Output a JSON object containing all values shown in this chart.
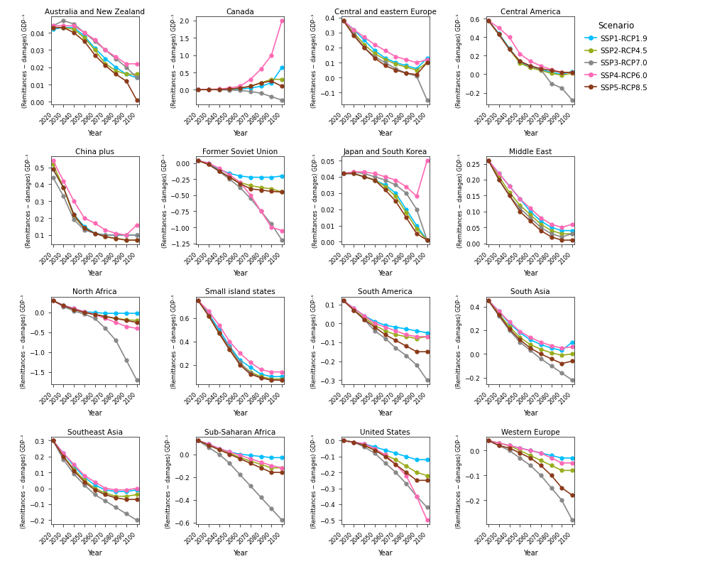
{
  "years": [
    2020,
    2030,
    2040,
    2050,
    2060,
    2070,
    2080,
    2090,
    2100
  ],
  "scenarios": [
    "SSP1-RCP1.9",
    "SSP2-RCP4.5",
    "SSP3-RCP7.0",
    "SSP4-RCP6.0",
    "SSP5-RCP8.5"
  ],
  "colors": [
    "#00BFFF",
    "#9aad1e",
    "#888888",
    "#FF69B4",
    "#8B3A1A"
  ],
  "regions": [
    "Australia and New Zealand",
    "Canada",
    "Central and eastern Europe",
    "Central America",
    "China plus",
    "Former Soviet Union",
    "Japan and South Korea",
    "Middle East",
    "North Africa",
    "Small island states",
    "South America",
    "South Asia",
    "Southeast Asia",
    "Sub-Saharan Africa",
    "United States",
    "Western Europe"
  ],
  "data": {
    "Australia and New Zealand": [
      [
        0.042,
        0.043,
        0.043,
        0.038,
        0.031,
        0.025,
        0.02,
        0.016,
        0.014
      ],
      [
        0.043,
        0.043,
        0.042,
        0.037,
        0.03,
        0.022,
        0.018,
        0.016,
        0.016
      ],
      [
        0.044,
        0.047,
        0.045,
        0.04,
        0.035,
        0.03,
        0.025,
        0.02,
        0.014
      ],
      [
        0.044,
        0.044,
        0.044,
        0.04,
        0.036,
        0.03,
        0.026,
        0.022,
        0.022
      ],
      [
        0.043,
        0.043,
        0.04,
        0.035,
        0.027,
        0.021,
        0.016,
        0.012,
        0.001
      ]
    ],
    "Canada": [
      [
        0.0,
        0.01,
        0.01,
        0.01,
        0.02,
        0.05,
        0.1,
        0.2,
        0.65
      ],
      [
        0.0,
        0.01,
        0.01,
        0.02,
        0.05,
        0.1,
        0.2,
        0.3,
        0.3
      ],
      [
        0.0,
        0.0,
        0.0,
        -0.01,
        -0.02,
        -0.05,
        -0.1,
        -0.2,
        -0.3
      ],
      [
        0.0,
        0.01,
        0.02,
        0.05,
        0.1,
        0.3,
        0.6,
        1.0,
        2.0
      ],
      [
        0.0,
        0.01,
        0.01,
        0.02,
        0.05,
        0.1,
        0.2,
        0.25,
        0.1
      ]
    ],
    "Central and eastern Europe": [
      [
        0.38,
        0.32,
        0.25,
        0.18,
        0.13,
        0.1,
        0.08,
        0.06,
        0.13
      ],
      [
        0.38,
        0.3,
        0.22,
        0.16,
        0.12,
        0.09,
        0.07,
        0.05,
        0.1
      ],
      [
        0.38,
        0.29,
        0.2,
        0.14,
        0.1,
        0.06,
        0.03,
        0.01,
        -0.15
      ],
      [
        0.38,
        0.32,
        0.27,
        0.22,
        0.18,
        0.14,
        0.12,
        0.1,
        0.12
      ],
      [
        0.38,
        0.28,
        0.2,
        0.13,
        0.08,
        0.05,
        0.03,
        0.02,
        0.1
      ]
    ],
    "Central America": [
      [
        0.58,
        0.44,
        0.28,
        0.13,
        0.08,
        0.05,
        0.02,
        0.0,
        0.03
      ],
      [
        0.58,
        0.43,
        0.27,
        0.12,
        0.07,
        0.04,
        0.01,
        -0.01,
        0.01
      ],
      [
        0.58,
        0.43,
        0.27,
        0.14,
        0.09,
        0.05,
        -0.1,
        -0.15,
        -0.28
      ],
      [
        0.58,
        0.5,
        0.4,
        0.22,
        0.14,
        0.09,
        0.05,
        0.02,
        0.02
      ],
      [
        0.58,
        0.43,
        0.27,
        0.14,
        0.09,
        0.06,
        0.04,
        0.02,
        0.02
      ]
    ],
    "China plus": [
      [
        0.49,
        0.38,
        0.22,
        0.15,
        0.11,
        0.1,
        0.1,
        0.1,
        0.1
      ],
      [
        0.52,
        0.38,
        0.21,
        0.14,
        0.11,
        0.09,
        0.08,
        0.07,
        0.07
      ],
      [
        0.44,
        0.33,
        0.19,
        0.13,
        0.11,
        0.1,
        0.1,
        0.1,
        0.1
      ],
      [
        0.54,
        0.42,
        0.3,
        0.2,
        0.17,
        0.13,
        0.11,
        0.1,
        0.16
      ],
      [
        0.49,
        0.38,
        0.22,
        0.14,
        0.11,
        0.09,
        0.08,
        0.07,
        0.07
      ]
    ],
    "Former Soviet Union": [
      [
        0.04,
        0.0,
        -0.1,
        -0.16,
        -0.2,
        -0.22,
        -0.22,
        -0.22,
        -0.2
      ],
      [
        0.04,
        -0.02,
        -0.12,
        -0.22,
        -0.3,
        -0.35,
        -0.38,
        -0.4,
        -0.45
      ],
      [
        0.04,
        -0.02,
        -0.13,
        -0.25,
        -0.38,
        -0.55,
        -0.75,
        -0.95,
        -1.2
      ],
      [
        0.04,
        0.0,
        -0.08,
        -0.18,
        -0.3,
        -0.5,
        -0.75,
        -1.0,
        -1.05
      ],
      [
        0.04,
        -0.02,
        -0.12,
        -0.22,
        -0.32,
        -0.4,
        -0.42,
        -0.44,
        -0.45
      ]
    ],
    "Japan and South Korea": [
      [
        0.042,
        0.042,
        0.04,
        0.038,
        0.035,
        0.03,
        0.02,
        0.01,
        0.001
      ],
      [
        0.042,
        0.042,
        0.04,
        0.038,
        0.034,
        0.028,
        0.018,
        0.008,
        0.001
      ],
      [
        0.042,
        0.043,
        0.042,
        0.04,
        0.038,
        0.035,
        0.03,
        0.02,
        0.001
      ],
      [
        0.042,
        0.043,
        0.043,
        0.042,
        0.04,
        0.038,
        0.034,
        0.028,
        0.05
      ],
      [
        0.042,
        0.042,
        0.04,
        0.038,
        0.032,
        0.025,
        0.015,
        0.005,
        0.001
      ]
    ],
    "Middle East": [
      [
        0.26,
        0.22,
        0.18,
        0.14,
        0.1,
        0.07,
        0.05,
        0.04,
        0.04
      ],
      [
        0.26,
        0.21,
        0.16,
        0.12,
        0.09,
        0.06,
        0.04,
        0.03,
        0.03
      ],
      [
        0.26,
        0.2,
        0.15,
        0.11,
        0.08,
        0.05,
        0.03,
        0.02,
        0.03
      ],
      [
        0.26,
        0.22,
        0.18,
        0.14,
        0.11,
        0.08,
        0.06,
        0.05,
        0.06
      ],
      [
        0.26,
        0.2,
        0.15,
        0.1,
        0.07,
        0.04,
        0.02,
        0.01,
        0.01
      ]
    ],
    "North Africa": [
      [
        0.3,
        0.18,
        0.1,
        0.02,
        0.0,
        -0.02,
        -0.02,
        -0.02,
        -0.02
      ],
      [
        0.3,
        0.17,
        0.08,
        0.0,
        -0.05,
        -0.1,
        -0.15,
        -0.18,
        -0.2
      ],
      [
        0.3,
        0.15,
        0.04,
        -0.04,
        -0.15,
        -0.4,
        -0.7,
        -1.2,
        -1.7
      ],
      [
        0.3,
        0.18,
        0.1,
        0.02,
        -0.05,
        -0.15,
        -0.25,
        -0.35,
        -0.4
      ],
      [
        0.3,
        0.17,
        0.08,
        0.0,
        -0.05,
        -0.1,
        -0.15,
        -0.2,
        -0.25
      ]
    ],
    "Small island states": [
      [
        0.75,
        0.64,
        0.5,
        0.36,
        0.24,
        0.18,
        0.12,
        0.1,
        0.1
      ],
      [
        0.75,
        0.62,
        0.47,
        0.33,
        0.21,
        0.14,
        0.1,
        0.08,
        0.08
      ],
      [
        0.75,
        0.63,
        0.48,
        0.35,
        0.22,
        0.13,
        0.09,
        0.07,
        0.07
      ],
      [
        0.75,
        0.66,
        0.54,
        0.4,
        0.3,
        0.22,
        0.16,
        0.14,
        0.14
      ],
      [
        0.75,
        0.62,
        0.47,
        0.33,
        0.2,
        0.12,
        0.09,
        0.07,
        0.07
      ]
    ],
    "South America": [
      [
        0.12,
        0.08,
        0.04,
        0.01,
        -0.01,
        -0.02,
        -0.03,
        -0.04,
        -0.05
      ],
      [
        0.12,
        0.07,
        0.03,
        -0.01,
        -0.04,
        -0.06,
        -0.07,
        -0.08,
        -0.07
      ],
      [
        0.12,
        0.07,
        0.02,
        -0.04,
        -0.08,
        -0.13,
        -0.17,
        -0.22,
        -0.3
      ],
      [
        0.12,
        0.08,
        0.04,
        0.0,
        -0.02,
        -0.04,
        -0.06,
        -0.07,
        -0.07
      ],
      [
        0.12,
        0.07,
        0.02,
        -0.02,
        -0.06,
        -0.09,
        -0.12,
        -0.15,
        -0.15
      ]
    ],
    "South Asia": [
      [
        0.45,
        0.36,
        0.26,
        0.18,
        0.12,
        0.08,
        0.05,
        0.03,
        0.1
      ],
      [
        0.45,
        0.34,
        0.23,
        0.14,
        0.08,
        0.04,
        0.01,
        -0.01,
        0.0
      ],
      [
        0.45,
        0.32,
        0.2,
        0.1,
        0.03,
        -0.04,
        -0.1,
        -0.16,
        -0.22
      ],
      [
        0.45,
        0.36,
        0.27,
        0.19,
        0.14,
        0.1,
        0.07,
        0.05,
        0.06
      ],
      [
        0.45,
        0.33,
        0.21,
        0.12,
        0.05,
        0.0,
        -0.04,
        -0.08,
        -0.06
      ]
    ],
    "Southeast Asia": [
      [
        0.3,
        0.22,
        0.14,
        0.07,
        0.02,
        -0.01,
        -0.02,
        -0.02,
        -0.01
      ],
      [
        0.3,
        0.2,
        0.12,
        0.05,
        0.0,
        -0.03,
        -0.05,
        -0.05,
        -0.04
      ],
      [
        0.3,
        0.18,
        0.09,
        0.02,
        -0.04,
        -0.08,
        -0.12,
        -0.16,
        -0.2
      ],
      [
        0.3,
        0.22,
        0.15,
        0.08,
        0.04,
        0.0,
        -0.01,
        -0.01,
        0.0
      ],
      [
        0.3,
        0.2,
        0.11,
        0.04,
        -0.01,
        -0.04,
        -0.06,
        -0.07,
        -0.07
      ]
    ],
    "Sub-Saharan Africa": [
      [
        0.12,
        0.09,
        0.05,
        0.02,
        0.0,
        -0.01,
        -0.02,
        -0.03,
        -0.03
      ],
      [
        0.12,
        0.08,
        0.04,
        0.01,
        -0.03,
        -0.06,
        -0.09,
        -0.12,
        -0.12
      ],
      [
        0.12,
        0.06,
        0.0,
        -0.08,
        -0.18,
        -0.28,
        -0.38,
        -0.48,
        -0.58
      ],
      [
        0.12,
        0.09,
        0.05,
        0.02,
        -0.01,
        -0.04,
        -0.07,
        -0.1,
        -0.12
      ],
      [
        0.12,
        0.08,
        0.04,
        0.0,
        -0.04,
        -0.08,
        -0.12,
        -0.16,
        -0.16
      ]
    ],
    "United States": [
      [
        0.0,
        -0.01,
        -0.02,
        -0.04,
        -0.06,
        -0.08,
        -0.1,
        -0.12,
        -0.12
      ],
      [
        0.0,
        -0.01,
        -0.03,
        -0.06,
        -0.09,
        -0.12,
        -0.16,
        -0.2,
        -0.22
      ],
      [
        0.0,
        -0.01,
        -0.04,
        -0.08,
        -0.14,
        -0.2,
        -0.27,
        -0.35,
        -0.42
      ],
      [
        0.0,
        -0.01,
        -0.02,
        -0.05,
        -0.09,
        -0.15,
        -0.22,
        -0.35,
        -0.5
      ],
      [
        0.0,
        -0.01,
        -0.03,
        -0.06,
        -0.1,
        -0.15,
        -0.2,
        -0.25,
        -0.25
      ]
    ],
    "Western Europe": [
      [
        0.04,
        0.03,
        0.02,
        0.01,
        0.0,
        -0.01,
        -0.02,
        -0.03,
        -0.03
      ],
      [
        0.04,
        0.03,
        0.02,
        0.0,
        -0.02,
        -0.04,
        -0.06,
        -0.08,
        -0.08
      ],
      [
        0.04,
        0.02,
        0.0,
        -0.03,
        -0.06,
        -0.1,
        -0.15,
        -0.2,
        -0.28
      ],
      [
        0.04,
        0.03,
        0.02,
        0.01,
        0.0,
        -0.01,
        -0.03,
        -0.05,
        -0.05
      ],
      [
        0.04,
        0.02,
        0.01,
        -0.01,
        -0.03,
        -0.06,
        -0.1,
        -0.15,
        -0.18
      ]
    ]
  },
  "ylabel": "(Remittances − damages) GDP⁻¹",
  "xlabel": "Year",
  "legend_title": "Scenario",
  "background_color": "#ffffff"
}
